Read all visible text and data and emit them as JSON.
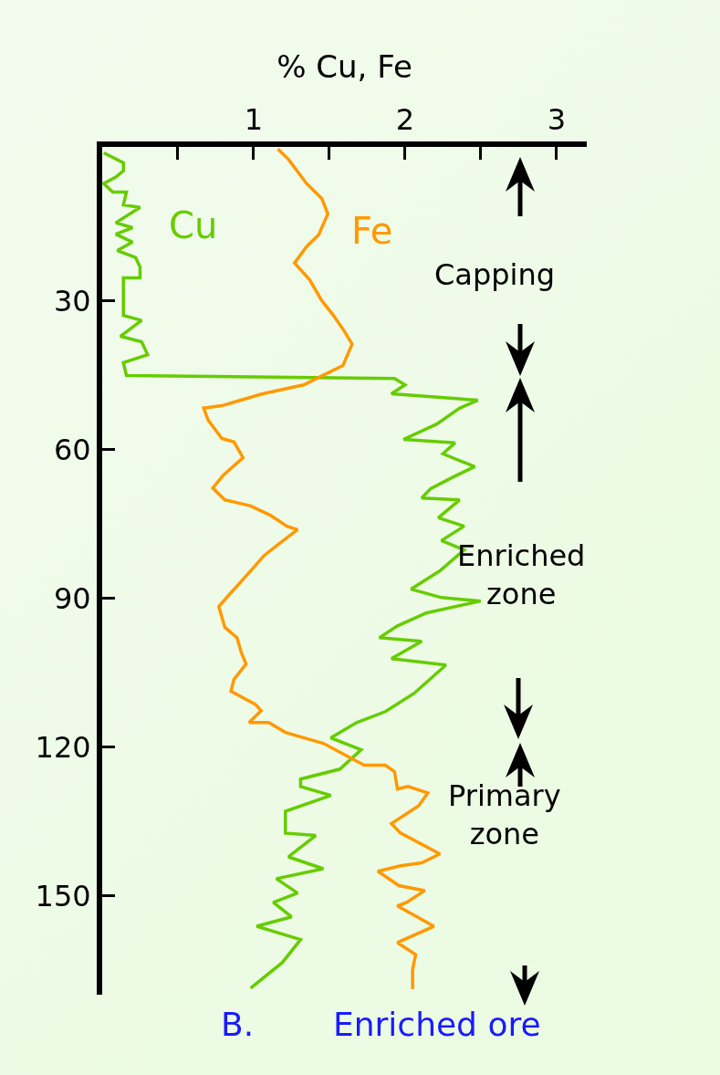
{
  "chart_data": {
    "type": "line",
    "xlabel": "% Cu, Fe",
    "xlim": [
      0,
      3.2
    ],
    "ylim": [
      170,
      -1
    ],
    "xticks": [
      {
        "value": 0.5,
        "label": null
      },
      1,
      {
        "value": 1.5,
        "label": null
      },
      2,
      {
        "value": 2.5,
        "label": null
      },
      3
    ],
    "yticks": [
      30,
      60,
      90,
      120,
      150
    ],
    "series": [
      {
        "name": "Cu",
        "color": "#66cc00",
        "x": [
          0.01,
          0.14,
          0.14,
          0.09,
          0.01,
          0.07,
          0.16,
          0.14,
          0.25,
          0.09,
          0.2,
          0.09,
          0.2,
          0.1,
          0.22,
          0.25,
          0.25,
          0.14,
          0.14,
          0.26,
          0.12,
          0.26,
          0.3,
          0.14,
          0.16,
          1.93,
          2.0,
          1.91,
          2.48,
          2.36,
          2.21,
          1.99,
          2.33,
          2.25,
          2.46,
          2.31,
          2.17,
          2.11,
          2.36,
          2.22,
          2.39,
          2.24,
          2.39,
          2.23,
          2.04,
          2.24,
          2.5,
          2.14,
          1.95,
          1.83,
          2.11,
          1.91,
          2.27,
          2.06,
          1.87,
          1.68,
          1.51,
          1.71,
          1.57,
          1.31,
          1.31,
          1.51,
          1.21,
          1.21,
          1.41,
          1.23,
          1.46,
          1.15,
          1.29,
          1.13,
          1.25,
          1.02,
          1.31,
          1.19,
          0.98
        ],
        "values": [
          0.2,
          2.2,
          3.8,
          5.1,
          6.4,
          8.1,
          8.1,
          10.7,
          11.2,
          14.3,
          15.3,
          16.6,
          18.2,
          19.9,
          21.3,
          23.2,
          25.4,
          25.4,
          33,
          34,
          37.2,
          38.3,
          40.9,
          42.5,
          45.1,
          45.7,
          47,
          48.8,
          50.1,
          51.7,
          54.9,
          58,
          58.7,
          60.9,
          63.5,
          65.7,
          67.9,
          69.8,
          70.2,
          73.8,
          75.5,
          78.4,
          80.3,
          84.5,
          88.2,
          89.9,
          90.6,
          93,
          95.6,
          98,
          98.7,
          102.2,
          103.5,
          109.2,
          112.9,
          115.1,
          118.2,
          120.6,
          124.5,
          126.5,
          128,
          129.8,
          133,
          137.4,
          137.9,
          142.2,
          144.6,
          146.6,
          149.5,
          151.4,
          154.3,
          156.2,
          158.9,
          163.5,
          168.7
        ]
      },
      {
        "name": "Fe",
        "color": "#ff9900",
        "x": [
          1.16,
          1.23,
          1.35,
          1.45,
          1.49,
          1.43,
          1.35,
          1.27,
          1.37,
          1.45,
          1.52,
          1.6,
          1.65,
          1.59,
          1.43,
          1.33,
          1.06,
          0.79,
          0.67,
          0.7,
          0.79,
          0.87,
          0.93,
          0.8,
          0.73,
          0.81,
          0.98,
          1.11,
          1.22,
          1.29,
          1.17,
          1.07,
          0.96,
          0.86,
          0.77,
          0.81,
          0.89,
          0.92,
          0.95,
          0.87,
          0.85,
          1.01,
          1.05,
          0.97,
          1.1,
          1.21,
          1.46,
          1.73,
          1.87,
          1.93,
          1.95,
          2.02,
          2.15,
          2.09,
          1.91,
          1.97,
          2.23,
          2.11,
          1.97,
          1.82,
          1.96,
          2.13,
          2.01,
          1.95,
          2.19,
          1.95,
          2.07,
          2.05,
          2.05
        ],
        "values": [
          -0.6,
          1.5,
          6.4,
          9.4,
          12.5,
          16.7,
          19.1,
          22.4,
          25.8,
          30,
          32.7,
          36.2,
          38.8,
          43.1,
          45.5,
          47,
          48.8,
          51.2,
          51.7,
          54.1,
          57.8,
          58.5,
          61.7,
          65.2,
          67.8,
          70.2,
          71.4,
          73.3,
          75.5,
          76.2,
          79,
          81.4,
          85.2,
          88.6,
          91.7,
          95.9,
          98,
          101.1,
          103.3,
          106.4,
          108.8,
          111.4,
          112.7,
          115.1,
          115.1,
          117.1,
          119.3,
          123.7,
          123.7,
          125,
          128.5,
          128,
          129.3,
          131.9,
          135.5,
          137.4,
          141.6,
          143.4,
          144,
          145.1,
          148,
          149,
          151.4,
          152.1,
          156.2,
          159.5,
          161.9,
          164.9,
          168.9
        ]
      }
    ],
    "annotations": [
      "Capping",
      "Enriched\nzone",
      "Primary\nzone",
      "B.",
      "Enriched ore"
    ]
  }
}
